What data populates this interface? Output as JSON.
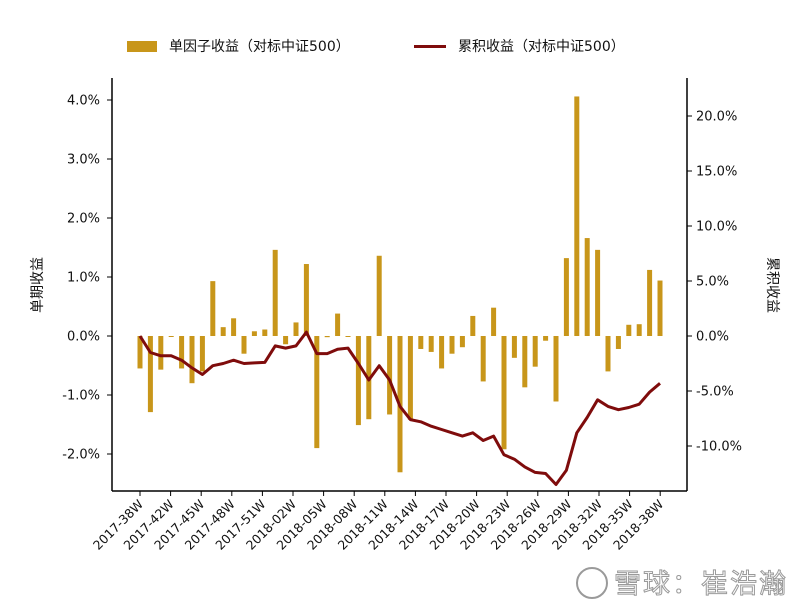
{
  "legend": {
    "bar_label": "单因子收益（对标中证500）",
    "line_label": "累积收益（对标中证500）"
  },
  "axes": {
    "left_label": "单期收益",
    "right_label": "累积收益"
  },
  "watermark": "雪球：崔浩瀚",
  "colors": {
    "bar": "#C8961A",
    "line": "#7F0C0C",
    "axis": "#000000"
  },
  "chart_data": {
    "type": "bar",
    "title": "",
    "xlabel": "",
    "ylabel": "单期收益",
    "ylabel_right": "累积收益",
    "ylim": [
      -2.6,
      4.3
    ],
    "ylim_right": [
      -14.2,
      23.5
    ],
    "yticks_left": [
      "4.0%",
      "3.0%",
      "2.0%",
      "1.0%",
      "0.0%",
      "-1.0%",
      "-2.0%"
    ],
    "yticks_left_values": [
      4,
      3,
      2,
      1,
      0,
      -1,
      -2
    ],
    "yticks_right": [
      "20.0%",
      "15.0%",
      "10.0%",
      "5.0%",
      "0.0%",
      "-5.0%",
      "-10.0%"
    ],
    "yticks_right_values": [
      20,
      15,
      10,
      5,
      0,
      -5,
      -10
    ],
    "xtick_labels": [
      "2017-38W",
      "2017-42W",
      "2017-45W",
      "2017-48W",
      "2017-51W",
      "2018-02W",
      "2018-05W",
      "2018-08W",
      "2018-11W",
      "2018-14W",
      "2018-17W",
      "2018-20W",
      "2018-23W",
      "2018-26W",
      "2018-29W",
      "2018-32W",
      "2018-35W",
      "2018-38W"
    ],
    "xtick_every": 3,
    "grid": false,
    "legend_position": "top",
    "series": [
      {
        "name": "单因子收益（对标中证500）",
        "type": "bar",
        "axis": "left",
        "unit": "%",
        "values": [
          -0.55,
          -1.29,
          -0.57,
          -0.01,
          -0.55,
          -0.8,
          -0.6,
          0.93,
          0.15,
          0.3,
          -0.3,
          0.08,
          0.11,
          1.46,
          -0.14,
          0.23,
          1.22,
          -1.9,
          -0.02,
          0.38,
          0.0,
          -1.51,
          -1.41,
          1.36,
          -1.33,
          -2.31,
          -1.42,
          -0.22,
          -0.27,
          -0.55,
          -0.3,
          -0.19,
          0.34,
          -0.77,
          0.48,
          -1.92,
          -0.37,
          -0.87,
          -0.52,
          -0.08,
          -1.11,
          1.32,
          4.06,
          1.66,
          1.46,
          -0.6,
          -0.22,
          0.19,
          0.2,
          1.12,
          0.94
        ]
      },
      {
        "name": "累积收益（对标中证500）",
        "type": "line",
        "axis": "right",
        "unit": "%",
        "values": [
          0.0,
          -1.5,
          -1.8,
          -1.8,
          -2.2,
          -2.9,
          -3.5,
          -2.7,
          -2.5,
          -2.2,
          -2.5,
          -2.45,
          -2.4,
          -0.9,
          -1.1,
          -0.9,
          0.35,
          -1.6,
          -1.6,
          -1.2,
          -1.1,
          -2.5,
          -4.0,
          -2.7,
          -4.0,
          -6.4,
          -7.6,
          -7.8,
          -8.2,
          -8.5,
          -8.8,
          -9.1,
          -8.8,
          -9.5,
          -9.1,
          -10.8,
          -11.2,
          -11.9,
          -12.4,
          -12.5,
          -13.5,
          -12.2,
          -8.8,
          -7.4,
          -5.8,
          -6.4,
          -6.7,
          -6.5,
          -6.2,
          -5.1,
          -4.3
        ]
      }
    ]
  }
}
